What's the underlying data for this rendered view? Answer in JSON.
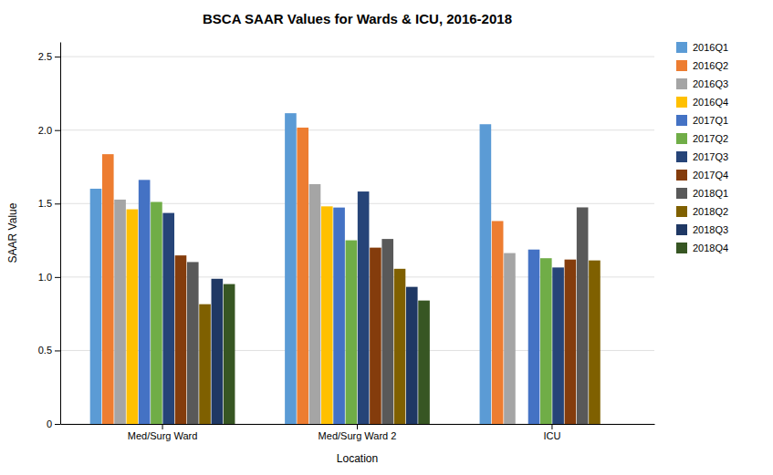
{
  "chart_data": {
    "type": "bar",
    "title": "BSCA SAAR Values for Wards & ICU, 2016-2018",
    "xlabel": "Location",
    "ylabel": "SAAR Value",
    "categories": [
      "Med/Surg Ward",
      "Med/Surg Ward 2",
      "ICU"
    ],
    "series": [
      {
        "name": "2016Q1",
        "color": "#5B9BD5",
        "values": [
          1.601,
          2.115,
          2.04
        ]
      },
      {
        "name": "2016Q2",
        "color": "#ED7D31",
        "values": [
          1.836,
          2.017,
          1.381
        ]
      },
      {
        "name": "2016Q3",
        "color": "#A5A5A5",
        "values": [
          1.527,
          1.632,
          1.163
        ]
      },
      {
        "name": "2016Q4",
        "color": "#FFC000",
        "values": [
          1.461,
          1.481,
          null
        ]
      },
      {
        "name": "2017Q1",
        "color": "#4472C4",
        "values": [
          1.661,
          1.473,
          1.187
        ]
      },
      {
        "name": "2017Q2",
        "color": "#70AD47",
        "values": [
          1.511,
          1.25,
          1.128
        ]
      },
      {
        "name": "2017Q3",
        "color": "#264478",
        "values": [
          1.436,
          1.582,
          1.065
        ]
      },
      {
        "name": "2017Q4",
        "color": "#843C0C",
        "values": [
          1.147,
          1.2,
          1.119
        ]
      },
      {
        "name": "2018Q1",
        "color": "#595959",
        "values": [
          1.102,
          1.259,
          1.474
        ]
      },
      {
        "name": "2018Q2",
        "color": "#7F6000",
        "values": [
          0.815,
          1.056,
          1.113
        ]
      },
      {
        "name": "2018Q3",
        "color": "#1F3864",
        "values": [
          0.988,
          0.933,
          null
        ]
      },
      {
        "name": "2018Q4",
        "color": "#375623",
        "values": [
          0.952,
          0.84,
          null
        ]
      }
    ],
    "ylim": [
      0,
      2.6
    ],
    "yticks": [
      0,
      0.5,
      {
        "value": 1,
        "label": "1.0"
      },
      1.5,
      {
        "value": 2,
        "label": "2.0"
      },
      2.5
    ],
    "grid": true,
    "legend": "right"
  }
}
